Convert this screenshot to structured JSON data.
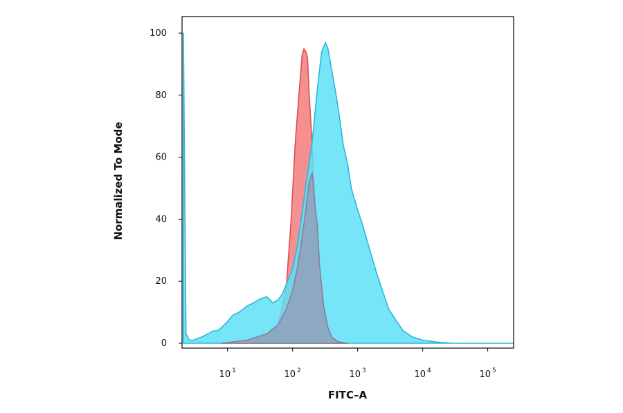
{
  "chart_data": {
    "type": "area",
    "title": "",
    "xlabel": "FITC–A",
    "ylabel": "Normalized To Mode",
    "x_scale": "log",
    "xlim": [
      2,
      250000
    ],
    "ylim": [
      0,
      100
    ],
    "grid": false,
    "legend": "none",
    "y_ticks": [
      {
        "value": 0,
        "label": "0"
      },
      {
        "value": 20,
        "label": "20"
      },
      {
        "value": 40,
        "label": "40"
      },
      {
        "value": 60,
        "label": "60"
      },
      {
        "value": 80,
        "label": "80"
      },
      {
        "value": 100,
        "label": "100"
      }
    ],
    "x_ticks": [
      {
        "value": 10,
        "base": "10",
        "exp": "1"
      },
      {
        "value": 100,
        "base": "10",
        "exp": "2"
      },
      {
        "value": 1000,
        "base": "10",
        "exp": "3"
      },
      {
        "value": 10000,
        "base": "10",
        "exp": "4"
      },
      {
        "value": 100000,
        "base": "10",
        "exp": "5"
      }
    ],
    "series": [
      {
        "color_fill": "#f47c7c",
        "color_line": "#d94f4f",
        "x": [
          8,
          20,
          40,
          60,
          80,
          95,
          110,
          125,
          140,
          150,
          160,
          170,
          180,
          195,
          210,
          230,
          260,
          300,
          350,
          400,
          500,
          700
        ],
        "y": [
          0,
          1,
          3,
          6,
          18,
          40,
          65,
          80,
          93,
          95,
          94,
          92,
          80,
          68,
          55,
          40,
          25,
          12,
          5,
          2,
          0.5,
          0
        ]
      },
      {
        "color_fill": "#5ee0f7",
        "color_line": "#2bb7d9",
        "x": [
          2.1,
          2.3,
          2.6,
          3,
          4,
          5,
          6,
          7,
          8,
          10,
          12,
          15,
          20,
          25,
          30,
          40,
          50,
          60,
          70,
          80,
          100,
          120,
          140,
          170,
          200,
          240,
          280,
          320,
          350,
          400,
          450,
          500,
          550,
          600,
          700,
          800,
          1000,
          1200,
          1400,
          1700,
          2000,
          2500,
          3000,
          4000,
          5000,
          7000,
          10000,
          15000,
          20000,
          30000,
          50000,
          100000,
          250000
        ],
        "y": [
          100,
          3,
          1,
          1,
          2,
          3,
          4,
          4,
          5,
          7,
          9,
          10,
          12,
          13,
          14,
          15,
          13,
          14,
          16,
          19,
          24,
          32,
          42,
          55,
          65,
          82,
          94,
          97,
          95,
          88,
          82,
          76,
          70,
          64,
          58,
          50,
          43,
          38,
          33,
          27,
          22,
          16,
          11,
          7,
          4,
          2,
          1,
          0.5,
          0.2,
          0,
          0,
          0,
          0
        ]
      },
      {
        "color_fill": "#8fa3bf",
        "color_line": "#8a7f99",
        "x": [
          8,
          20,
          40,
          60,
          80,
          100,
          120,
          140,
          160,
          180,
          200,
          220,
          240,
          260,
          300,
          350,
          400,
          500,
          700
        ],
        "y": [
          0,
          1,
          3,
          6,
          11,
          17,
          25,
          34,
          43,
          52,
          55,
          45,
          38,
          25,
          12,
          5,
          2,
          0.5,
          0
        ]
      }
    ]
  }
}
